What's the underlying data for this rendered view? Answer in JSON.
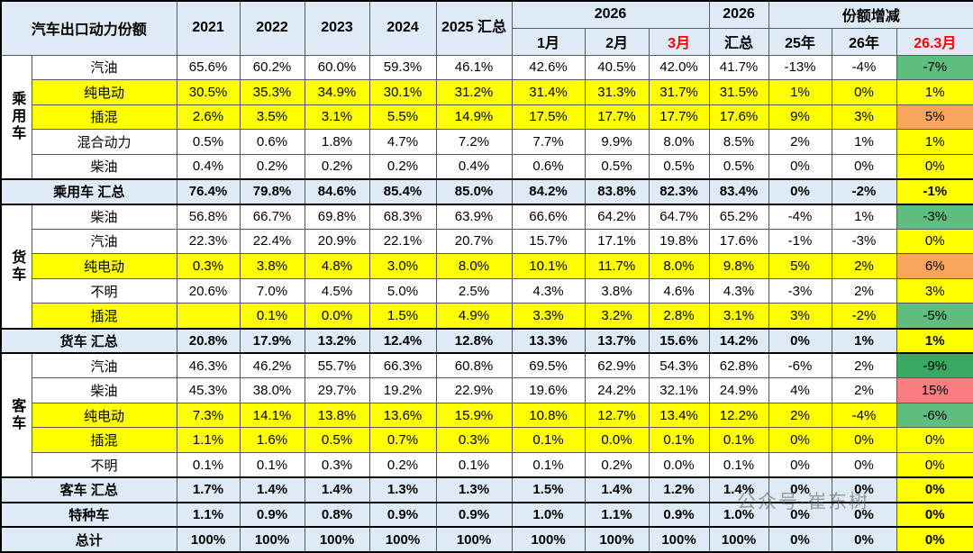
{
  "title": "汽车出口动力份额",
  "watermark": "公众号·崔东树",
  "colors": {
    "header_blue": "#DEEBF7",
    "yellow": "#FFFF00",
    "green": "#5FBE7D",
    "dark_green": "#3AA860",
    "orange": "#F8A65D",
    "red": "#FB7D80",
    "red_text": "#FF0000",
    "border": "#595959"
  },
  "chart_data": {
    "type": "table",
    "title": "汽车出口动力份额",
    "header": {
      "corner_label": "汽车出口动力份额",
      "year_cols": [
        "2021",
        "2022",
        "2023",
        "2024"
      ],
      "col_2025": "2025 汇总",
      "group_2026_label": "2026",
      "month_cols": [
        "1月",
        "2月",
        "3月"
      ],
      "col_2026_total": [
        "2026",
        "汇总"
      ],
      "change_group_label": "份额增减",
      "change_cols": [
        "25年",
        "26年",
        "26.3月"
      ]
    },
    "groups": [
      {
        "label": "乘用车",
        "start": 0,
        "span": 5
      },
      {
        "label": "货车",
        "start": 6,
        "span": 5
      },
      {
        "label": "客车",
        "start": 12,
        "span": 5
      }
    ],
    "rows": [
      {
        "label": "汽油",
        "kind": "fuel",
        "yellow": false,
        "last_color": "green",
        "values": [
          "65.6%",
          "60.2%",
          "60.0%",
          "59.3%",
          "46.1%",
          "42.6%",
          "40.5%",
          "42.0%",
          "41.7%",
          "-13%",
          "-4%",
          "-7%"
        ]
      },
      {
        "label": "纯电动",
        "kind": "fuel",
        "yellow": true,
        "last_color": "yellow",
        "values": [
          "30.5%",
          "35.3%",
          "34.9%",
          "30.1%",
          "31.2%",
          "31.4%",
          "31.3%",
          "31.7%",
          "31.5%",
          "1%",
          "0%",
          "1%"
        ]
      },
      {
        "label": "插混",
        "kind": "fuel",
        "yellow": true,
        "last_color": "orange",
        "values": [
          "2.6%",
          "3.5%",
          "3.1%",
          "5.5%",
          "14.9%",
          "17.5%",
          "17.7%",
          "17.7%",
          "17.6%",
          "9%",
          "3%",
          "5%"
        ]
      },
      {
        "label": "混合动力",
        "kind": "fuel",
        "yellow": false,
        "last_color": "yellow",
        "values": [
          "0.5%",
          "0.6%",
          "1.8%",
          "4.7%",
          "7.2%",
          "7.7%",
          "9.9%",
          "8.0%",
          "8.5%",
          "2%",
          "1%",
          "1%"
        ]
      },
      {
        "label": "柴油",
        "kind": "fuel",
        "yellow": false,
        "last_color": "yellow",
        "values": [
          "0.4%",
          "0.2%",
          "0.2%",
          "0.2%",
          "0.4%",
          "0.6%",
          "0.5%",
          "0.5%",
          "0.5%",
          "0%",
          "0%",
          "0%"
        ]
      },
      {
        "label": "乘用车 汇总",
        "kind": "summary",
        "yellow": false,
        "last_color": "yellow",
        "values": [
          "76.4%",
          "79.8%",
          "84.6%",
          "85.4%",
          "85.0%",
          "84.2%",
          "83.8%",
          "82.3%",
          "83.4%",
          "0%",
          "-2%",
          "-1%"
        ]
      },
      {
        "label": "柴油",
        "kind": "fuel",
        "yellow": false,
        "last_color": "green",
        "values": [
          "56.8%",
          "66.7%",
          "69.8%",
          "68.3%",
          "63.9%",
          "66.6%",
          "64.2%",
          "64.7%",
          "65.2%",
          "-4%",
          "1%",
          "-3%"
        ]
      },
      {
        "label": "汽油",
        "kind": "fuel",
        "yellow": false,
        "last_color": "yellow",
        "values": [
          "22.3%",
          "22.4%",
          "20.9%",
          "22.1%",
          "20.7%",
          "15.7%",
          "17.1%",
          "19.8%",
          "17.6%",
          "-1%",
          "-3%",
          "0%"
        ]
      },
      {
        "label": "纯电动",
        "kind": "fuel",
        "yellow": true,
        "last_color": "orange",
        "values": [
          "0.3%",
          "3.8%",
          "4.8%",
          "3.0%",
          "8.0%",
          "10.1%",
          "11.7%",
          "8.0%",
          "9.8%",
          "5%",
          "2%",
          "6%"
        ]
      },
      {
        "label": "不明",
        "kind": "fuel",
        "yellow": false,
        "last_color": "yellow",
        "values": [
          "20.6%",
          "7.0%",
          "4.5%",
          "5.0%",
          "2.5%",
          "4.3%",
          "3.8%",
          "4.6%",
          "4.3%",
          "-3%",
          "2%",
          "3%"
        ]
      },
      {
        "label": "插混",
        "kind": "fuel",
        "yellow": true,
        "last_color": "green",
        "values": [
          "",
          "0.1%",
          "0.0%",
          "1.5%",
          "4.9%",
          "3.3%",
          "3.2%",
          "2.8%",
          "3.1%",
          "3%",
          "-2%",
          "-5%"
        ]
      },
      {
        "label": "货车 汇总",
        "kind": "summary",
        "yellow": false,
        "last_color": "yellow",
        "values": [
          "20.8%",
          "17.9%",
          "13.2%",
          "12.4%",
          "12.8%",
          "13.3%",
          "13.7%",
          "15.6%",
          "14.2%",
          "0%",
          "1%",
          "1%"
        ]
      },
      {
        "label": "汽油",
        "kind": "fuel",
        "yellow": false,
        "last_color": "dark_green",
        "values": [
          "46.3%",
          "46.2%",
          "55.7%",
          "66.3%",
          "60.8%",
          "69.5%",
          "62.9%",
          "54.3%",
          "62.8%",
          "-6%",
          "2%",
          "-9%"
        ]
      },
      {
        "label": "柴油",
        "kind": "fuel",
        "yellow": false,
        "last_color": "red",
        "values": [
          "45.3%",
          "38.0%",
          "29.7%",
          "19.2%",
          "22.9%",
          "19.6%",
          "24.2%",
          "32.1%",
          "24.9%",
          "4%",
          "2%",
          "15%"
        ]
      },
      {
        "label": "纯电动",
        "kind": "fuel",
        "yellow": true,
        "last_color": "green",
        "values": [
          "7.3%",
          "14.1%",
          "13.8%",
          "13.6%",
          "15.9%",
          "10.8%",
          "12.7%",
          "13.4%",
          "12.2%",
          "2%",
          "-4%",
          "-6%"
        ]
      },
      {
        "label": "插混",
        "kind": "fuel",
        "yellow": true,
        "last_color": "yellow",
        "values": [
          "1.1%",
          "1.6%",
          "0.5%",
          "0.7%",
          "0.3%",
          "0.1%",
          "0.0%",
          "0.1%",
          "0.1%",
          "0%",
          "0%",
          "0%"
        ]
      },
      {
        "label": "不明",
        "kind": "fuel",
        "yellow": false,
        "last_color": "yellow",
        "values": [
          "0.1%",
          "0.1%",
          "0.3%",
          "0.2%",
          "0.1%",
          "0.1%",
          "0.2%",
          "0.0%",
          "0.1%",
          "0%",
          "0%",
          "0%"
        ]
      },
      {
        "label": "客车 汇总",
        "kind": "summary",
        "yellow": false,
        "last_color": "yellow",
        "values": [
          "1.7%",
          "1.4%",
          "1.4%",
          "1.3%",
          "1.3%",
          "1.5%",
          "1.4%",
          "1.2%",
          "1.4%",
          "0%",
          "0%",
          "0%"
        ]
      },
      {
        "label": "特种车",
        "kind": "summary",
        "yellow": false,
        "last_color": "yellow",
        "values": [
          "1.1%",
          "0.9%",
          "0.8%",
          "0.9%",
          "0.9%",
          "1.0%",
          "1.1%",
          "0.9%",
          "1.0%",
          "0%",
          "0%",
          "0%"
        ]
      },
      {
        "label": "总计",
        "kind": "summary",
        "yellow": false,
        "last_color": "yellow",
        "values": [
          "100%",
          "100%",
          "100%",
          "100%",
          "100%",
          "100%",
          "100%",
          "100%",
          "100%",
          "0%",
          "0%",
          "0%"
        ]
      }
    ]
  }
}
